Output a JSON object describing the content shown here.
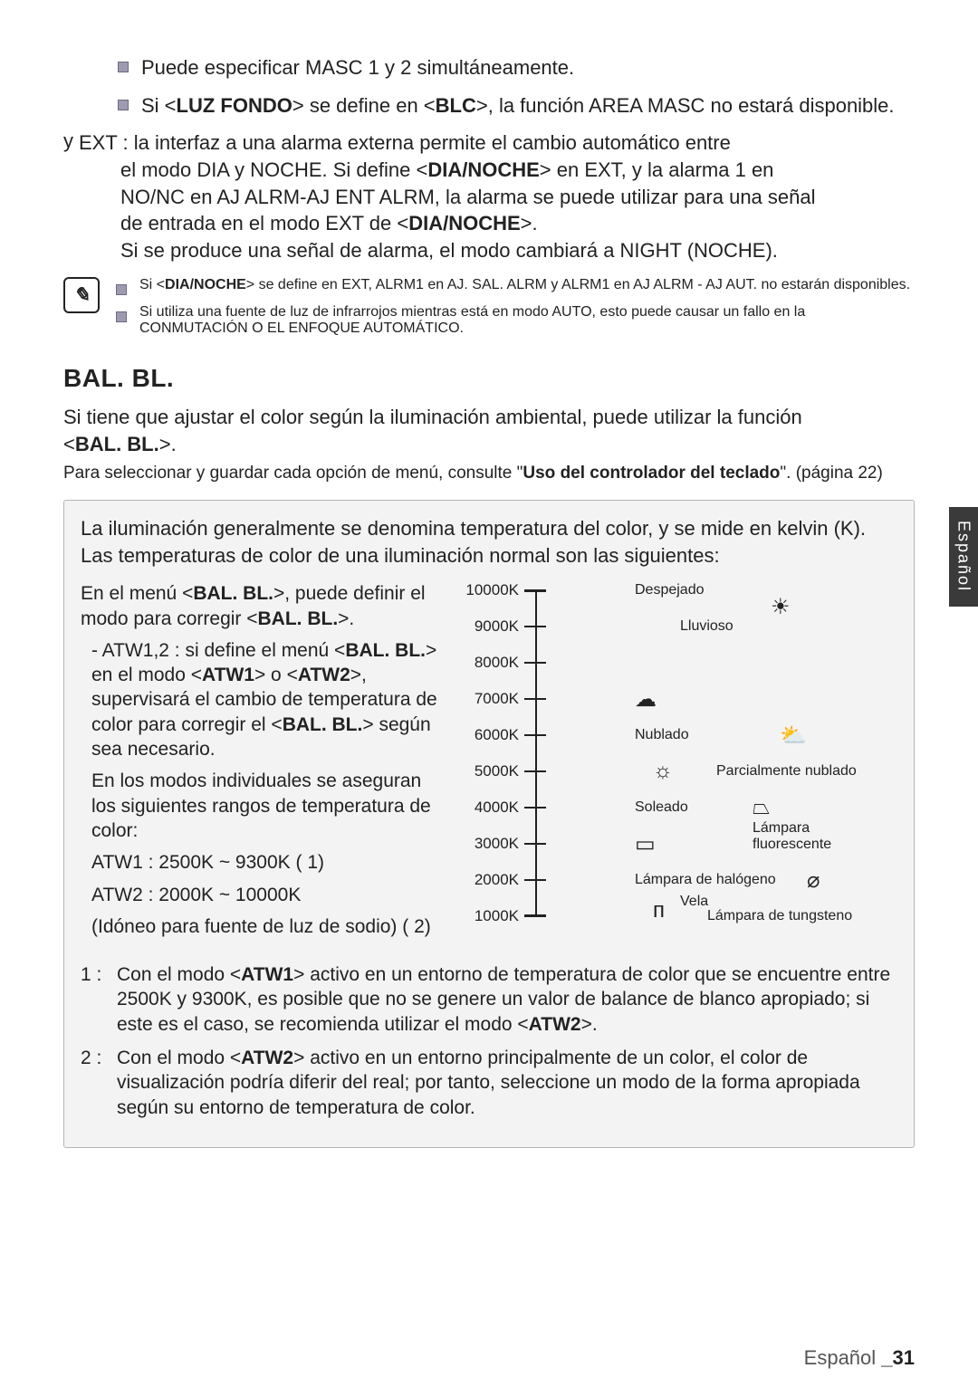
{
  "colors": {
    "text": "#222222",
    "bullet_fill": "#9e9bb0",
    "bullet_border": "#6d6a82",
    "box_bg": "#f3f3f3",
    "box_border": "#b5b5b5",
    "sidetab_bg": "#3a3a3a",
    "sidetab_text": "#ffffff",
    "footer_muted": "#555555"
  },
  "typography": {
    "body_fontsize_pt": 16,
    "heading_fontsize_pt": 21,
    "smallref_fontsize_pt": 14,
    "chart_label_fontsize_pt": 12
  },
  "bullets_top": [
    "Puede especificar MASC 1 y 2 simultáneamente.",
    "Si <LUZ FONDO> se define en <BLC>, la función AREA MASC no estará disponible."
  ],
  "bullets_top_bold_spans": [
    [],
    [
      "LUZ FONDO",
      "BLC"
    ]
  ],
  "ext": {
    "lead": "y",
    "label": "EXT : ",
    "line1": "la interfaz a una alarma externa permite el cambio automático entre",
    "line2": "el modo DIA y NOCHE. Si define <DIA/NOCHE> en EXT, y la alarma 1 en",
    "line3": "NO/NC en AJ ALRM-AJ ENT ALRM, la alarma se puede utilizar para una señal",
    "line4": "de entrada en el modo EXT de <DIA/NOCHE>.",
    "line5": "Si se produce una señal de alarma, el modo cambiará a NIGHT (NOCHE).",
    "bold": [
      "DIA/NOCHE"
    ]
  },
  "note_icon_glyph": "✎",
  "note_bullets": [
    "Si <DIA/NOCHE> se define en EXT, ALRM1 en AJ. SAL. ALRM y ALRM1 en AJ ALRM - AJ AUT. no estarán disponibles.",
    "Si utiliza una fuente de luz de infrarrojos mientras está en modo AUTO, esto puede causar un fallo en la CONMUTACIÓN O EL ENFOQUE AUTOMÁTICO."
  ],
  "note_bullets_bold": [
    [
      "DIA/NOCHE"
    ],
    []
  ],
  "section_title": "BAL. BL.",
  "section_intro_line1": "Si tiene que ajustar el color según la iluminación ambiental, puede utilizar la función",
  "section_intro_line2": "<BAL. BL.>.",
  "section_intro_bold": [
    "BAL. BL."
  ],
  "section_ref": "Para seleccionar y guardar cada opción de menú, consulte \"Uso del controlador del teclado\". (página 22)",
  "section_ref_bold": [
    "Uso del controlador del teclado"
  ],
  "box": {
    "intro": "La iluminación generalmente se denomina temperatura del color, y se mide en kelvin (K). Las temperaturas de color de una iluminación normal son las siguientes:",
    "left": {
      "p1": "En el menú <BAL. BL.>, puede definir el modo para corregir <BAL. BL.>.",
      "p1_bold": [
        "BAL. BL.",
        "BAL. BL."
      ],
      "atw_lead": "- ATW1,2 : si define el menú <BAL. BL.> en el modo <ATW1> o <ATW2>, supervisará el cambio de temperatura de color para corregir el <BAL. BL.> según sea necesario.",
      "atw_lead_bold": [
        "BAL. BL.",
        "ATW1",
        "ATW2",
        "BAL. BL."
      ],
      "atw_p2": "En los modos individuales se aseguran los siguientes rangos de temperatura de color:",
      "atw_r1": "ATW1 : 2500K ~ 9300K (  1)",
      "atw_r2": "ATW2 : 2000K ~ 10000K",
      "atw_r3": "(Idóneo para fuente de luz de sodio) (  2)"
    },
    "chart": {
      "type": "axis-scale",
      "axis_color": "#222222",
      "background_color": "#f3f3f3",
      "ylim": [
        1000,
        10000
      ],
      "tick_step": 1000,
      "ticks": [
        {
          "value": 10000,
          "label": "10000K"
        },
        {
          "value": 9000,
          "label": "9000K"
        },
        {
          "value": 8000,
          "label": "8000K"
        },
        {
          "value": 7000,
          "label": "7000K"
        },
        {
          "value": 6000,
          "label": "6000K"
        },
        {
          "value": 5000,
          "label": "5000K"
        },
        {
          "value": 4000,
          "label": "4000K"
        },
        {
          "value": 3000,
          "label": "3000K"
        },
        {
          "value": 2000,
          "label": "2000K"
        },
        {
          "value": 1000,
          "label": "1000K"
        }
      ],
      "annotations": [
        {
          "value": 10000,
          "text": "Despejado",
          "dx": 110,
          "icon": "☀",
          "icon_dx": 260,
          "icon_dy": 18
        },
        {
          "value": 9000,
          "text": "Lluvioso",
          "dx": 160
        },
        {
          "value": 7000,
          "text": "",
          "icon": "☁",
          "icon_dx": 110
        },
        {
          "value": 6000,
          "text": "Nublado",
          "dx": 110,
          "icon": "⛅",
          "icon_dx": 270
        },
        {
          "value": 5000,
          "text": "Parcialmente nublado",
          "dx": 200,
          "icon": "☼",
          "icon_dx": 130
        },
        {
          "value": 4000,
          "text": "Soleado",
          "dx": 110,
          "icon": "⏢",
          "icon_dx": 240
        },
        {
          "value": 3200,
          "text": "Lámpara fluorescente",
          "dx": 240,
          "wrap": true
        },
        {
          "value": 3000,
          "text": "",
          "icon": "▭",
          "icon_dx": 110
        },
        {
          "value": 2000,
          "text": "Lámpara de halógeno",
          "dx": 110,
          "icon": "⌀",
          "icon_dx": 300
        },
        {
          "value": 1400,
          "text": "Vela",
          "dx": 160,
          "icon": "ᴨ",
          "icon_dx": 130,
          "icon_dy": 10
        },
        {
          "value": 1000,
          "text": "Lámpara de tungsteno",
          "dx": 190
        }
      ]
    },
    "footnotes": [
      {
        "num": "1 :",
        "text": "Con el modo <ATW1> activo en un entorno de temperatura de color que se encuentre entre 2500K y 9300K, es posible que no se genere un valor de balance de blanco apropiado; si este es el caso, se recomienda utilizar el modo <ATW2>.",
        "bold": [
          "ATW1",
          "ATW2"
        ]
      },
      {
        "num": "2 :",
        "text": "Con el modo <ATW2> activo en un entorno principalmente de un color, el color de visualización podría diferir del real; por tanto, seleccione un modo de la forma apropiada según su entorno de temperatura de color.",
        "bold": [
          "ATW2"
        ]
      }
    ]
  },
  "sidetab": "Español",
  "footer_lang": "Español ",
  "footer_page": "_31"
}
